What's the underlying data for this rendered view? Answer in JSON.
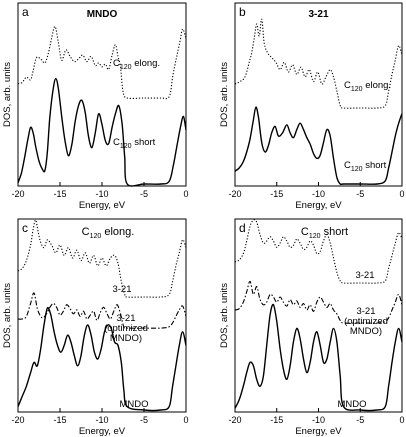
{
  "chart_data": [
    {
      "type": "line",
      "panel_letter": "a",
      "title": "MNDO",
      "xlabel": "Energy, eV",
      "ylabel": "DOS, arb. units",
      "xlim": [
        -20,
        0
      ],
      "x_ticks": [
        -20,
        -15,
        -10,
        -5,
        0
      ],
      "y_ticks_visible": false,
      "grid": false,
      "series": [
        {
          "style": "dotted",
          "label_main": "C",
          "label_sub": "120",
          "label_rest": " elong.",
          "x": [
            -20,
            -19.5,
            -19,
            -18.5,
            -18.2,
            -17.8,
            -17.3,
            -16.8,
            -16.4,
            -16,
            -15.6,
            -15.2,
            -14.8,
            -14.3,
            -13.8,
            -13.3,
            -12.8,
            -12.3,
            -11.8,
            -11.3,
            -10.8,
            -10.4,
            -10,
            -9.6,
            -9.2,
            -8.8,
            -8.4,
            -8.1,
            -7.8,
            -7.5,
            -7,
            -5,
            -3,
            -2,
            -1.6,
            -1.3,
            -1,
            -0.7,
            -0.4,
            0
          ],
          "y": [
            0.55,
            0.6,
            0.8,
            0.7,
            1.05,
            1.55,
            1.5,
            1.35,
            1.7,
            2.3,
            2.75,
            2.15,
            1.45,
            1.85,
            1.6,
            1.4,
            1.5,
            1.65,
            1.4,
            1.6,
            1.25,
            1.35,
            1.2,
            1.3,
            1.1,
            1.65,
            2.05,
            1.6,
            1.2,
            0.25,
            0.0,
            0.0,
            0.0,
            0.05,
            0.8,
            1.3,
            1.75,
            2.2,
            2.65,
            2.3
          ]
        },
        {
          "style": "solid",
          "label_main": "C",
          "label_sub": "120",
          "label_rest": " short",
          "x": [
            -20,
            -19.6,
            -19.2,
            -18.8,
            -18.5,
            -18.2,
            -17.9,
            -17.5,
            -17.1,
            -16.8,
            -16.5,
            -16.2,
            -15.8,
            -15.5,
            -15.2,
            -14.8,
            -14.4,
            -14,
            -13.6,
            -13.2,
            -12.8,
            -12.4,
            -12,
            -11.6,
            -11.2,
            -10.8,
            -10.4,
            -10,
            -9.6,
            -9.2,
            -8.8,
            -8.4,
            -8,
            -7.6,
            -7.3,
            -7,
            -5,
            -3,
            -2,
            -1.5,
            -1,
            -0.6,
            -0.3,
            0
          ],
          "y": [
            0.05,
            0.4,
            1.0,
            1.7,
            2.1,
            1.9,
            1.4,
            0.85,
            0.55,
            0.5,
            1.2,
            2.5,
            3.55,
            3.9,
            3.55,
            2.5,
            1.6,
            1.05,
            1.45,
            2.3,
            2.9,
            3.1,
            2.65,
            1.75,
            1.35,
            1.9,
            2.6,
            2.2,
            1.6,
            1.5,
            2.1,
            2.6,
            2.9,
            2.2,
            1.0,
            0.0,
            0.0,
            0.0,
            0.1,
            0.7,
            1.55,
            2.2,
            2.5,
            2.0
          ]
        }
      ]
    },
    {
      "type": "line",
      "panel_letter": "b",
      "title": "3-21",
      "xlabel": "Energy, eV",
      "ylabel": "DOS, arb. units",
      "xlim": [
        -20,
        0
      ],
      "x_ticks": [
        -20,
        -15,
        -10,
        -5,
        0
      ],
      "y_ticks_visible": false,
      "grid": false,
      "series": [
        {
          "style": "dotted",
          "label_main": "C",
          "label_sub": "120",
          "label_rest": " elong.",
          "x": [
            -20,
            -19.4,
            -18.8,
            -18.3,
            -18,
            -17.7,
            -17.4,
            -17.1,
            -16.8,
            -16.5,
            -16.1,
            -15.6,
            -15.1,
            -14.6,
            -14.1,
            -13.6,
            -13.1,
            -12.6,
            -12.1,
            -11.6,
            -11.1,
            -10.6,
            -10.1,
            -9.6,
            -9.1,
            -8.6,
            -8.2,
            -7.8,
            -7.4,
            -7,
            -5,
            -3,
            -2,
            -1.6,
            -1.2,
            -0.8,
            -0.4,
            0
          ],
          "y": [
            1.0,
            1.1,
            1.3,
            1.9,
            2.3,
            2.9,
            3.5,
            3.0,
            3.7,
            2.7,
            2.3,
            2.1,
            1.9,
            1.6,
            1.9,
            1.5,
            1.8,
            1.4,
            1.7,
            1.3,
            1.6,
            1.1,
            1.5,
            1.0,
            1.3,
            1.6,
            1.3,
            0.7,
            0.1,
            0.0,
            0.0,
            0.0,
            0.1,
            0.7,
            1.4,
            2.0,
            2.6,
            2.2
          ]
        },
        {
          "style": "solid",
          "label_main": "C",
          "label_sub": "120",
          "label_rest": " short",
          "x": [
            -20,
            -19.5,
            -19,
            -18.6,
            -18.2,
            -17.8,
            -17.5,
            -17.2,
            -16.8,
            -16.4,
            -16,
            -15.6,
            -15.2,
            -14.8,
            -14.3,
            -13.8,
            -13.4,
            -13,
            -12.6,
            -12.2,
            -11.8,
            -11.4,
            -11,
            -10.6,
            -10.2,
            -9.8,
            -9.4,
            -9,
            -8.6,
            -8.2,
            -7.8,
            -7.4,
            -7,
            -5,
            -3,
            -2,
            -1.6,
            -1.2,
            -0.8,
            -0.4,
            0
          ],
          "y": [
            0.4,
            0.5,
            0.7,
            1.0,
            1.4,
            2.0,
            2.4,
            2.1,
            1.3,
            1.0,
            1.2,
            1.6,
            1.8,
            1.5,
            1.6,
            1.85,
            1.6,
            1.45,
            1.7,
            1.9,
            1.7,
            1.45,
            1.25,
            0.95,
            0.8,
            0.9,
            1.3,
            1.7,
            1.5,
            0.8,
            0.2,
            0.0,
            0.0,
            0.0,
            0.0,
            0.1,
            0.5,
            1.0,
            1.5,
            1.9,
            2.2
          ]
        }
      ]
    },
    {
      "type": "line",
      "panel_letter": "c",
      "title_main": "C",
      "title_sub": "120",
      "title_rest": " elong.",
      "xlabel": "Energy, eV",
      "ylabel": "DOS, arb. units",
      "xlim": [
        -20,
        0
      ],
      "x_ticks": [
        -20,
        -15,
        -10,
        -5,
        0
      ],
      "y_ticks_visible": false,
      "grid": false,
      "series": [
        {
          "style": "dotted",
          "label": "3-21",
          "x": [
            -20,
            -19.5,
            -19,
            -18.5,
            -18.2,
            -17.9,
            -17.6,
            -17.3,
            -16.9,
            -16.5,
            -16,
            -15.5,
            -15,
            -14.5,
            -14,
            -13.5,
            -13,
            -12.5,
            -12,
            -11.5,
            -11,
            -10.5,
            -10,
            -9.5,
            -9,
            -8.5,
            -8.1,
            -7.7,
            -7.3,
            -7,
            -5,
            -3,
            -2,
            -1.6,
            -1.2,
            -0.8,
            -0.4,
            0
          ],
          "y": [
            1.0,
            1.1,
            1.4,
            2.0,
            2.6,
            3.1,
            2.5,
            2.1,
            1.9,
            2.2,
            2.0,
            1.7,
            2.0,
            1.6,
            1.9,
            1.5,
            1.8,
            1.4,
            1.7,
            1.3,
            1.6,
            1.2,
            1.5,
            1.2,
            1.5,
            1.6,
            1.3,
            0.6,
            0.1,
            0.0,
            0.0,
            0.0,
            0.1,
            0.6,
            1.2,
            1.7,
            2.2,
            1.9
          ]
        },
        {
          "style": "dash-dot",
          "label": "3-21\n(optimized\nMNDO)",
          "x": [
            -20,
            -19.5,
            -19,
            -18.5,
            -18.1,
            -17.7,
            -17.3,
            -17,
            -16.6,
            -16.2,
            -15.8,
            -15.4,
            -15,
            -14.6,
            -14.2,
            -13.8,
            -13.4,
            -13,
            -12.6,
            -12.2,
            -11.8,
            -11.4,
            -11,
            -10.6,
            -10.2,
            -9.8,
            -9.4,
            -9,
            -8.6,
            -8.2,
            -7.8,
            -7.4,
            -7,
            -5,
            -3,
            -2,
            -1.6,
            -1.2,
            -0.8,
            -0.4,
            0
          ],
          "y": [
            1.0,
            1.0,
            1.1,
            1.6,
            2.0,
            1.4,
            1.1,
            1.05,
            1.2,
            1.45,
            1.6,
            1.45,
            1.15,
            1.3,
            1.55,
            1.4,
            1.2,
            1.35,
            1.1,
            1.3,
            1.0,
            1.15,
            1.3,
            0.95,
            1.25,
            1.45,
            1.2,
            1.0,
            1.3,
            1.55,
            1.2,
            0.7,
            0.65,
            0.65,
            0.65,
            0.7,
            0.85,
            1.1,
            1.35,
            1.5,
            1.1
          ]
        },
        {
          "style": "solid",
          "label": "MNDO",
          "x": [
            -20,
            -19.5,
            -19,
            -18.5,
            -18.1,
            -17.7,
            -17.3,
            -16.9,
            -16.5,
            -16.1,
            -15.7,
            -15.3,
            -14.9,
            -14.5,
            -14.1,
            -13.7,
            -13.3,
            -12.9,
            -12.5,
            -12.1,
            -11.7,
            -11.3,
            -10.9,
            -10.5,
            -10.1,
            -9.7,
            -9.3,
            -8.9,
            -8.5,
            -8.1,
            -7.7,
            -7.4,
            -7,
            -5,
            -3,
            -2,
            -1.6,
            -1.2,
            -0.8,
            -0.4,
            0
          ],
          "y": [
            0.1,
            0.4,
            0.7,
            1.1,
            1.4,
            1.3,
            1.8,
            2.5,
            3.0,
            2.8,
            2.3,
            1.9,
            1.7,
            1.9,
            2.2,
            2.0,
            1.6,
            1.3,
            1.6,
            2.2,
            2.5,
            2.2,
            1.7,
            1.5,
            1.8,
            2.3,
            2.5,
            2.4,
            2.0,
            1.9,
            1.4,
            0.6,
            0.1,
            0.0,
            0.0,
            0.1,
            0.7,
            1.3,
            1.9,
            2.3,
            1.9
          ]
        }
      ]
    },
    {
      "type": "line",
      "panel_letter": "d",
      "title_main": "C",
      "title_sub": "120",
      "title_rest": " short",
      "xlabel": "Energy, eV",
      "ylabel": "DOS, arb. units",
      "xlim": [
        -20,
        0
      ],
      "x_ticks": [
        -20,
        -15,
        -10,
        -5,
        0
      ],
      "y_ticks_visible": false,
      "grid": false,
      "series": [
        {
          "style": "dotted",
          "label": "3-21",
          "x": [
            -20,
            -19.5,
            -19,
            -18.6,
            -18.2,
            -17.8,
            -17.4,
            -17,
            -16.6,
            -16.2,
            -15.8,
            -15.4,
            -15,
            -14.6,
            -14.2,
            -13.8,
            -13.4,
            -13,
            -12.6,
            -12.2,
            -11.8,
            -11.4,
            -11,
            -10.6,
            -10.2,
            -9.8,
            -9.4,
            -9,
            -8.6,
            -8.2,
            -7.8,
            -7.4,
            -7,
            -5,
            -3,
            -2,
            -1.6,
            -1.2,
            -0.8,
            -0.4,
            0
          ],
          "y": [
            1.0,
            1.1,
            1.4,
            2.0,
            2.7,
            3.2,
            2.9,
            2.3,
            1.9,
            2.0,
            2.2,
            2.0,
            1.7,
            1.9,
            2.2,
            2.0,
            1.7,
            1.8,
            2.1,
            1.9,
            1.6,
            1.7,
            2.0,
            1.8,
            1.4,
            1.5,
            2.0,
            2.3,
            1.9,
            1.2,
            0.5,
            0.1,
            0.0,
            0.0,
            0.0,
            0.1,
            0.7,
            1.3,
            1.9,
            2.4,
            2.1
          ]
        },
        {
          "style": "dash-dot",
          "label": "3-21\n(optimized\nMNDO)",
          "x": [
            -20,
            -19.5,
            -19,
            -18.6,
            -18.2,
            -17.8,
            -17.4,
            -17,
            -16.6,
            -16.2,
            -15.8,
            -15.4,
            -15,
            -14.6,
            -14.2,
            -13.8,
            -13.4,
            -13,
            -12.6,
            -12.2,
            -11.8,
            -11.4,
            -11,
            -10.6,
            -10.2,
            -9.8,
            -9.4,
            -9,
            -8.6,
            -8.2,
            -7.8,
            -7.4,
            -7,
            -5,
            -3,
            -2,
            -1.6,
            -1.2,
            -0.8,
            -0.4,
            0
          ],
          "y": [
            1.0,
            1.05,
            1.3,
            1.7,
            2.1,
            1.6,
            1.9,
            1.4,
            1.2,
            1.3,
            1.6,
            1.5,
            1.3,
            1.5,
            1.3,
            1.15,
            1.4,
            1.2,
            1.35,
            1.1,
            1.25,
            1.0,
            1.2,
            0.95,
            1.3,
            1.5,
            1.3,
            1.1,
            1.25,
            1.0,
            0.85,
            0.6,
            0.5,
            0.5,
            0.5,
            0.55,
            0.7,
            1.0,
            1.3,
            1.6,
            1.2
          ]
        },
        {
          "style": "solid",
          "label": "MNDO",
          "x": [
            -20,
            -19.5,
            -19,
            -18.6,
            -18.2,
            -17.8,
            -17.4,
            -17,
            -16.6,
            -16.2,
            -15.8,
            -15.4,
            -15,
            -14.6,
            -14.2,
            -13.8,
            -13.4,
            -13,
            -12.6,
            -12.2,
            -11.8,
            -11.4,
            -11,
            -10.6,
            -10.2,
            -9.8,
            -9.4,
            -9,
            -8.6,
            -8.2,
            -7.8,
            -7.4,
            -7,
            -5,
            -3,
            -2,
            -1.6,
            -1.2,
            -0.8,
            -0.4,
            0
          ],
          "y": [
            0.05,
            0.3,
            0.7,
            1.1,
            1.4,
            1.3,
            0.9,
            0.7,
            1.0,
            1.9,
            2.8,
            3.1,
            2.6,
            1.8,
            1.2,
            0.9,
            1.3,
            2.0,
            2.4,
            2.1,
            1.5,
            1.1,
            1.4,
            2.0,
            2.3,
            1.9,
            1.4,
            1.5,
            2.0,
            2.4,
            2.0,
            1.0,
            0.1,
            0.0,
            0.0,
            0.1,
            0.7,
            1.4,
            2.0,
            2.4,
            2.0
          ]
        }
      ]
    }
  ]
}
